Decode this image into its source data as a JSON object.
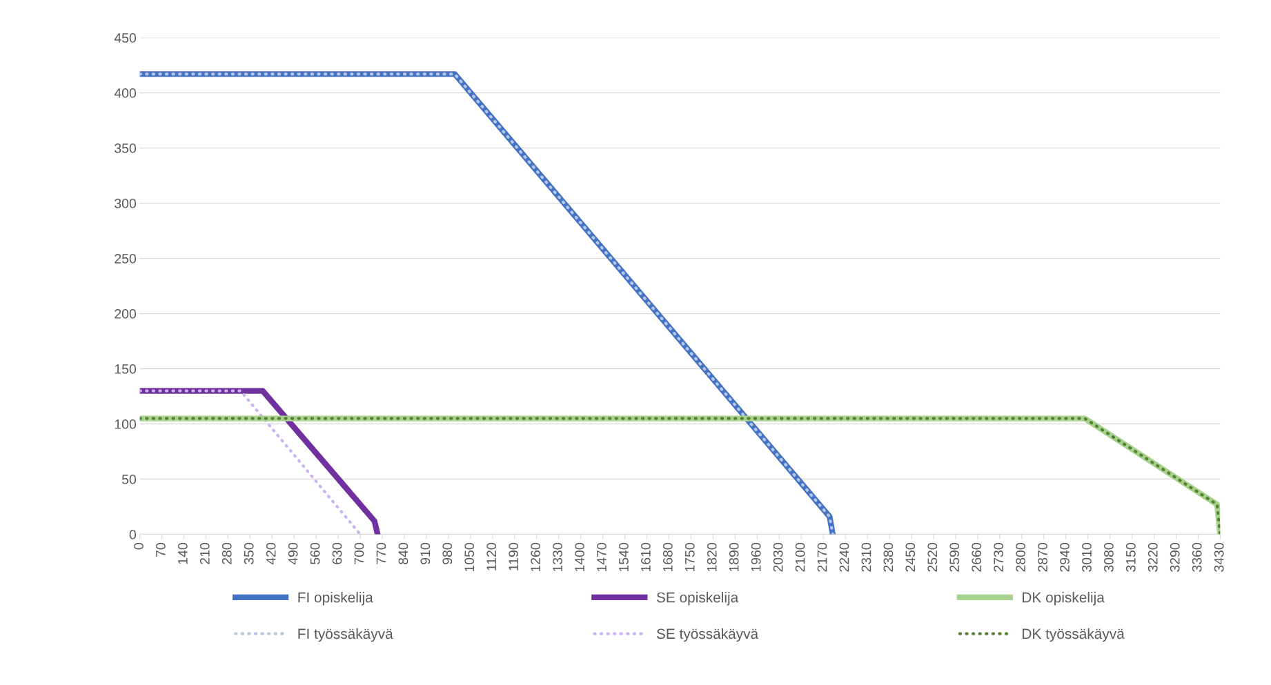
{
  "chart_data": {
    "type": "line",
    "xlim": [
      0,
      3430
    ],
    "xticks": [
      0,
      70,
      140,
      210,
      280,
      350,
      420,
      490,
      560,
      630,
      700,
      770,
      840,
      910,
      980,
      1050,
      1120,
      1190,
      1260,
      1330,
      1400,
      1470,
      1540,
      1610,
      1680,
      1750,
      1820,
      1890,
      1960,
      2030,
      2100,
      2170,
      2240,
      2310,
      2380,
      2450,
      2520,
      2590,
      2660,
      2730,
      2800,
      2870,
      2940,
      3010,
      3080,
      3150,
      3220,
      3290,
      3360,
      3430
    ],
    "ylim": [
      0,
      450
    ],
    "yticks": [
      0,
      50,
      100,
      150,
      200,
      250,
      300,
      350,
      400,
      450
    ],
    "grid": "y",
    "legend": "bottom",
    "marker": "none",
    "series": [
      {
        "name": "FI opiskelija",
        "color": "#4472c4",
        "line_style": "solid",
        "x": [
          0,
          1000,
          2190,
          2200
        ],
        "values": [
          417,
          417,
          16,
          0
        ]
      },
      {
        "name": "FI työssäkäyvä",
        "color": "#b4c7e7",
        "line_style": "dotted",
        "x": [
          0,
          1000,
          2190,
          2200
        ],
        "values": [
          417,
          417,
          16,
          0
        ]
      },
      {
        "name": "SE opiskelija",
        "color": "#7030a0",
        "line_style": "solid",
        "x": [
          0,
          390,
          745,
          755
        ],
        "values": [
          130,
          130,
          12,
          0
        ]
      },
      {
        "name": "SE työssäkäyvä",
        "color": "#ccb3f0",
        "line_style": "dotted",
        "x": [
          0,
          320,
          700
        ],
        "values": [
          130,
          130,
          0
        ]
      },
      {
        "name": "DK opiskelija",
        "color": "#a9d18e",
        "line_style": "solid",
        "x": [
          0,
          3000,
          3420,
          3430
        ],
        "values": [
          105,
          105,
          27,
          0
        ]
      },
      {
        "name": "DK työssäkäyvä",
        "color": "#548235",
        "line_style": "dotted",
        "x": [
          0,
          3000,
          3420,
          3430
        ],
        "values": [
          105,
          105,
          27,
          0
        ]
      }
    ]
  }
}
